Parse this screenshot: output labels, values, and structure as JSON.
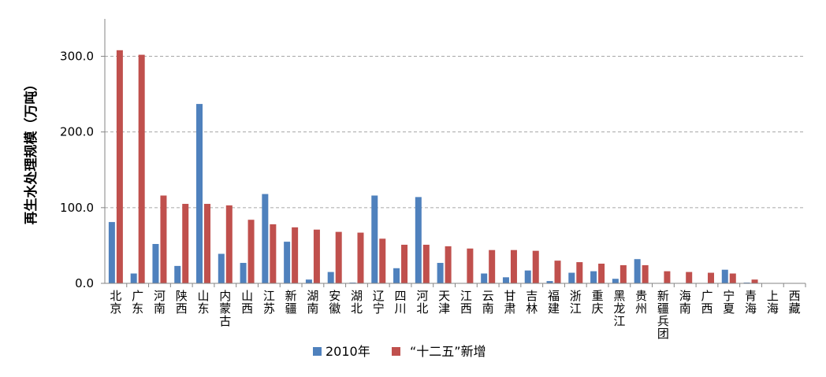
{
  "chart_data": {
    "type": "bar",
    "ylabel": "再生水处理规模（万吨）",
    "ylim": [
      0,
      350
    ],
    "yticks": [
      "0.0",
      "100.0",
      "200.0",
      "300.0"
    ],
    "ytick_values": [
      0,
      100,
      200,
      300
    ],
    "grid": "horizontal dashed",
    "legend_position": "bottom",
    "categories": [
      "北京",
      "广东",
      "河南",
      "陕西",
      "山东",
      "内蒙古",
      "山西",
      "江苏",
      "新疆",
      "湖南",
      "安徽",
      "湖北",
      "辽宁",
      "四川",
      "河北",
      "天津",
      "江西",
      "云南",
      "甘肃",
      "吉林",
      "福建",
      "浙江",
      "重庆",
      "黑龙江",
      "贵州",
      "新疆兵团",
      "海南",
      "广西",
      "宁夏",
      "青海",
      "上海",
      "西藏"
    ],
    "series": [
      {
        "name": "2010年",
        "color": "#4f81bd",
        "values": [
          81,
          13,
          52,
          23,
          237,
          39,
          27,
          118,
          55,
          5,
          15,
          1,
          116,
          20,
          114,
          27,
          0,
          13,
          8,
          17,
          3,
          14,
          16,
          6,
          32,
          0,
          0,
          0,
          18,
          1,
          0,
          0
        ]
      },
      {
        "name": "“十二五”新增",
        "color": "#c0504d",
        "values": [
          308,
          302,
          116,
          105,
          105,
          103,
          84,
          78,
          74,
          71,
          68,
          67,
          59,
          51,
          51,
          49,
          46,
          44,
          44,
          43,
          30,
          28,
          26,
          24,
          24,
          16,
          15,
          14,
          13,
          5,
          0,
          0
        ]
      }
    ]
  }
}
